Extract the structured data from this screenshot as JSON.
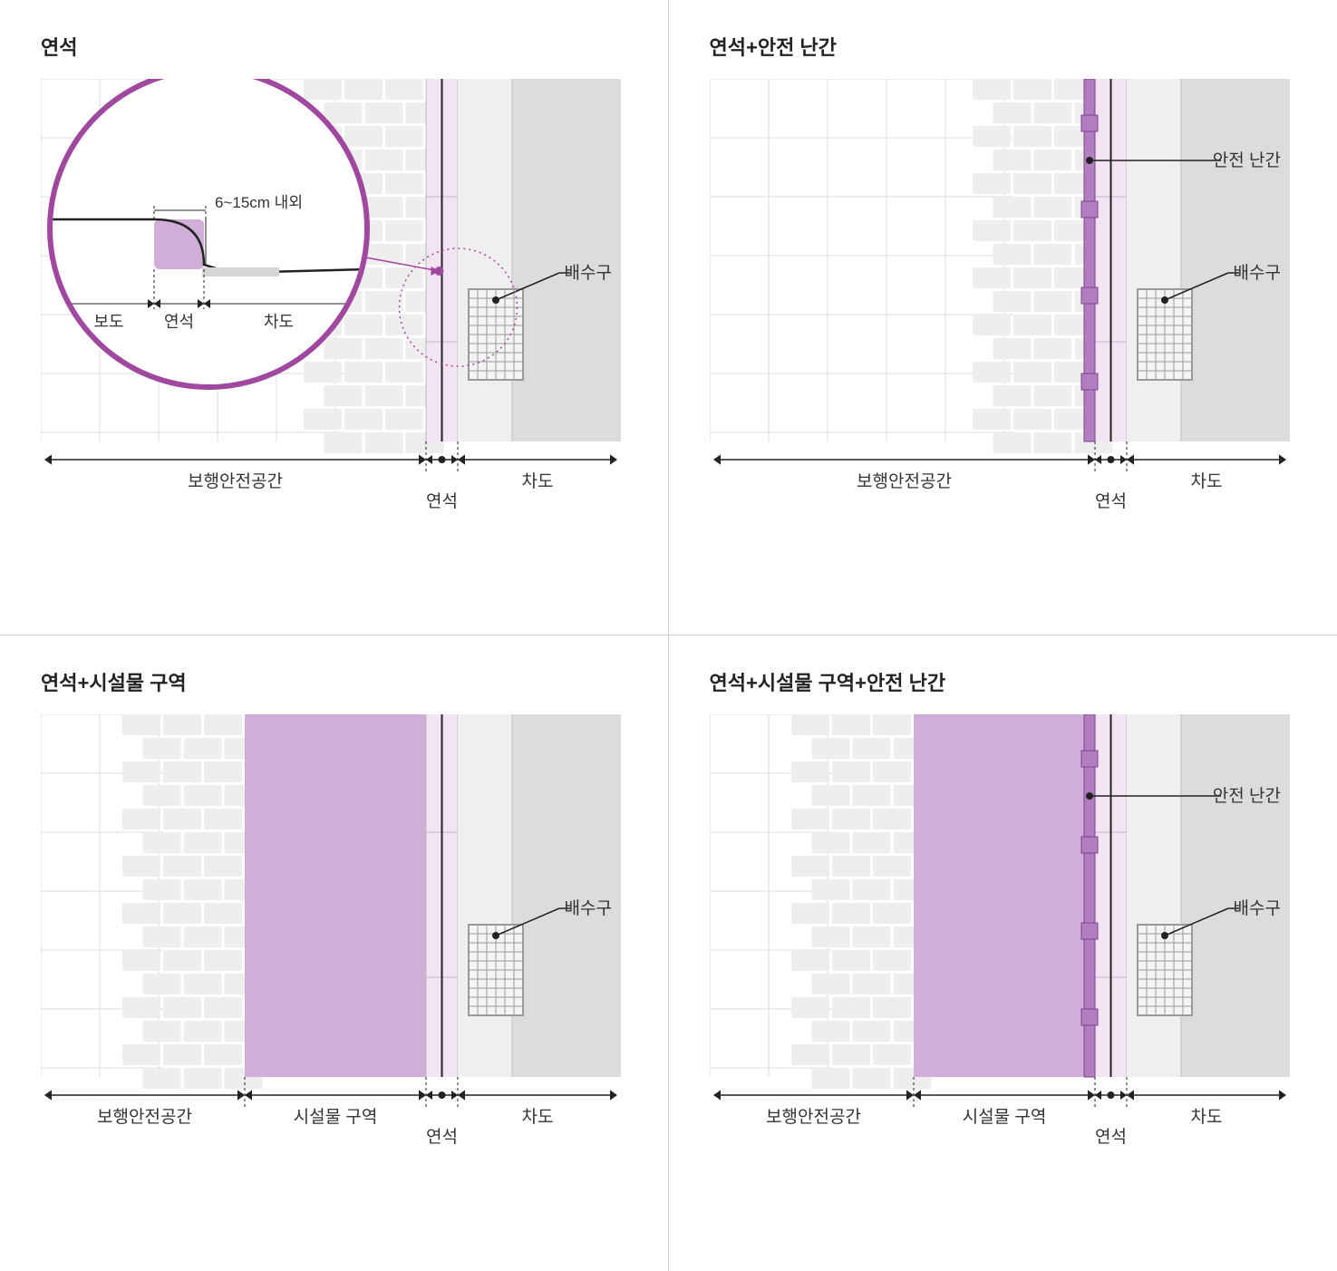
{
  "panels": [
    {
      "title": "연석"
    },
    {
      "title": "연석+안전 난간"
    },
    {
      "title": "연석+시설물 구역"
    },
    {
      "title": "연석+시설물 구역+안전 난간"
    }
  ],
  "labels": {
    "pedestrian_space": "보행안전공간",
    "curb": "연석",
    "facility_zone": "시설물 구역",
    "roadway": "차도",
    "sidewalk": "보도",
    "drain": "배수구",
    "safety_rail": "안전 난간",
    "height_range": "6~15cm 내외"
  },
  "colors": {
    "grid_line": "#dcdcdc",
    "brick_lt": "#eeeeee",
    "brick_line": "#cccccc",
    "curb_fill": "#f2e4f3",
    "curb_line": "#333333",
    "gutter_fill": "#efefef",
    "road_fill": "#dcdcdc",
    "facility_fill": "#d1aed8",
    "rail_fill": "#b27ec0",
    "rail_stroke": "#7b4488",
    "magnifier_ring": "#a0489f",
    "dotted_ring": "#a0489f",
    "arrow": "#222222",
    "text": "#333333",
    "title": "#222222",
    "drain_stroke": "#999999",
    "drain_fill": "#f4f4f4",
    "pointer_dot": "#222222"
  },
  "dimensions": {
    "plan_width": 640,
    "plan_height": 460,
    "brick_col_width": 90,
    "curb_strip_width": 35,
    "gutter_width": 60,
    "road_width": 120,
    "facility_width": 200,
    "rail_width": 12,
    "rail_post_size": 18,
    "drain": {
      "w": 60,
      "h": 100,
      "rows": 10,
      "cols": 6
    },
    "magnifier_radius": 175,
    "dotted_radius": 65,
    "arrow_head": 8,
    "brick_row_h": 26,
    "grid_step": 65
  }
}
